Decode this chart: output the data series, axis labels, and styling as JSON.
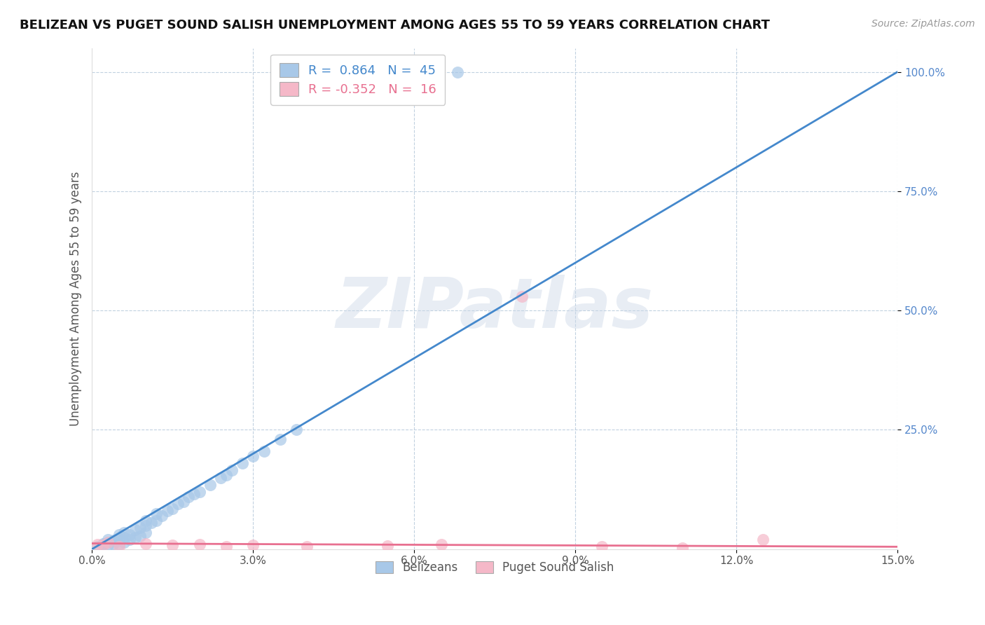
{
  "title": "BELIZEAN VS PUGET SOUND SALISH UNEMPLOYMENT AMONG AGES 55 TO 59 YEARS CORRELATION CHART",
  "source": "Source: ZipAtlas.com",
  "ylabel": "Unemployment Among Ages 55 to 59 years",
  "xlim": [
    0.0,
    0.15
  ],
  "ylim": [
    0.0,
    1.05
  ],
  "xticks": [
    0.0,
    0.03,
    0.06,
    0.09,
    0.12,
    0.15
  ],
  "xticklabels": [
    "0.0%",
    "3.0%",
    "6.0%",
    "9.0%",
    "12.0%",
    "15.0%"
  ],
  "yticks": [
    0.25,
    0.5,
    0.75,
    1.0
  ],
  "yticklabels": [
    "25.0%",
    "50.0%",
    "75.0%",
    "100.0%"
  ],
  "blue_R": 0.864,
  "blue_N": 45,
  "pink_R": -0.352,
  "pink_N": 16,
  "blue_color": "#a8c8e8",
  "pink_color": "#f5b8c8",
  "blue_line_color": "#4488cc",
  "pink_line_color": "#e87090",
  "watermark_text": "ZIPatlas",
  "background_color": "#ffffff",
  "blue_scatter_x": [
    0.001,
    0.002,
    0.002,
    0.003,
    0.003,
    0.003,
    0.004,
    0.004,
    0.005,
    0.005,
    0.005,
    0.006,
    0.006,
    0.006,
    0.007,
    0.007,
    0.008,
    0.008,
    0.009,
    0.009,
    0.01,
    0.01,
    0.01,
    0.011,
    0.012,
    0.012,
    0.013,
    0.014,
    0.015,
    0.016,
    0.017,
    0.018,
    0.019,
    0.02,
    0.022,
    0.024,
    0.025,
    0.026,
    0.028,
    0.03,
    0.032,
    0.035,
    0.038,
    0.053,
    0.068
  ],
  "blue_scatter_y": [
    0.005,
    0.01,
    0.012,
    0.008,
    0.015,
    0.02,
    0.012,
    0.018,
    0.01,
    0.022,
    0.03,
    0.015,
    0.025,
    0.035,
    0.02,
    0.03,
    0.025,
    0.04,
    0.028,
    0.045,
    0.035,
    0.05,
    0.06,
    0.055,
    0.06,
    0.075,
    0.07,
    0.08,
    0.085,
    0.095,
    0.1,
    0.11,
    0.115,
    0.12,
    0.135,
    0.15,
    0.155,
    0.165,
    0.18,
    0.195,
    0.205,
    0.23,
    0.25,
    1.0,
    1.0
  ],
  "pink_scatter_x": [
    0.001,
    0.002,
    0.003,
    0.005,
    0.01,
    0.015,
    0.02,
    0.025,
    0.03,
    0.04,
    0.055,
    0.065,
    0.08,
    0.095,
    0.11,
    0.125
  ],
  "pink_scatter_y": [
    0.01,
    0.008,
    0.015,
    0.005,
    0.012,
    0.008,
    0.01,
    0.006,
    0.008,
    0.005,
    0.007,
    0.01,
    0.53,
    0.005,
    0.003,
    0.02
  ],
  "blue_line_x": [
    0.0,
    0.15
  ],
  "blue_line_y": [
    0.0,
    1.0
  ],
  "pink_line_x": [
    0.0,
    0.15
  ],
  "pink_line_y": [
    0.012,
    0.005
  ]
}
